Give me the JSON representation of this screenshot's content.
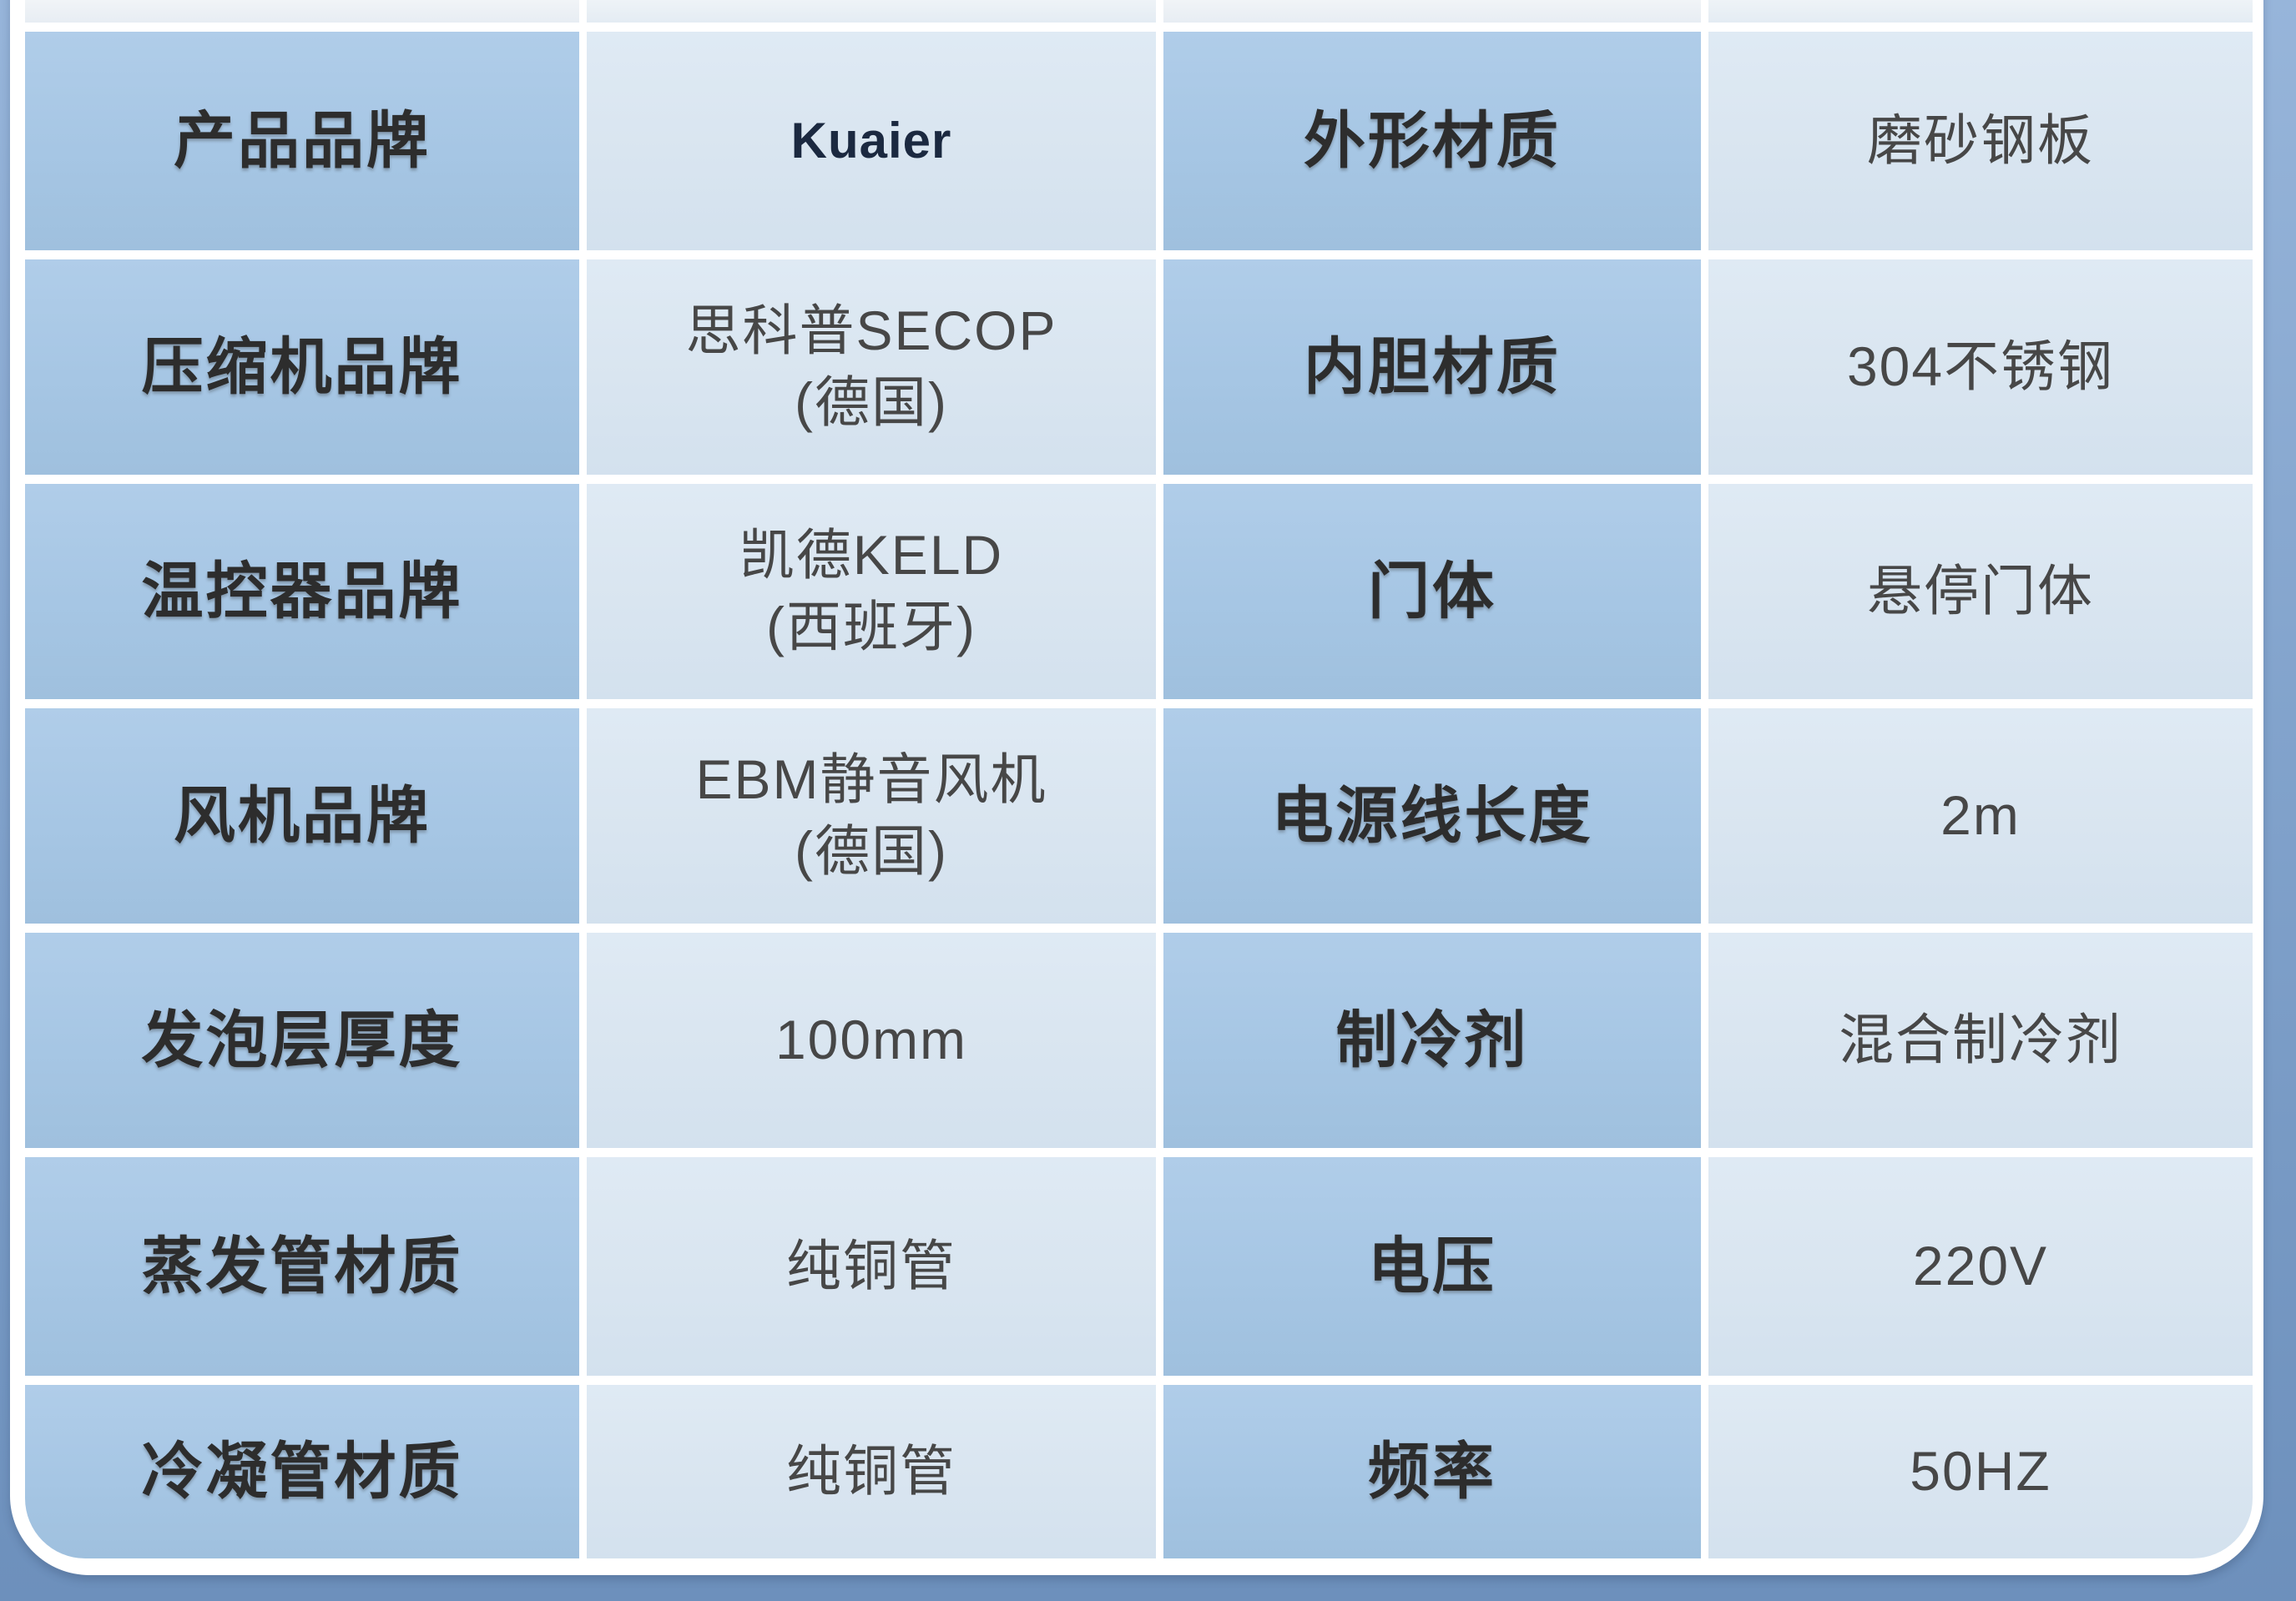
{
  "table": {
    "title_note": "product specification table",
    "pairs": [
      {
        "label": "产品品牌",
        "value": "Kuaier"
      },
      {
        "label": "外形材质",
        "value": "磨砂钢板"
      },
      {
        "label": "压缩机品牌",
        "value": "思科普SECOP\n(德国)"
      },
      {
        "label": "内胆材质",
        "value": "304不锈钢"
      },
      {
        "label": "温控器品牌",
        "value": "凯德KELD\n(西班牙)"
      },
      {
        "label": "门体",
        "value": "悬停门体"
      },
      {
        "label": "风机品牌",
        "value": "EBM静音风机\n(德国)"
      },
      {
        "label": "电源线长度",
        "value": "2m"
      },
      {
        "label": "发泡层厚度",
        "value": "100mm"
      },
      {
        "label": "制冷剂",
        "value": "混合制冷剂"
      },
      {
        "label": "蒸发管材质",
        "value": "纯铜管"
      },
      {
        "label": "电压",
        "value": "220V"
      },
      {
        "label": "冷凝管材质",
        "value": "纯铜管"
      },
      {
        "label": "频率",
        "value": "50HZ"
      }
    ]
  },
  "colors": {
    "page_background_top": "#97b5da",
    "page_background_bottom": "#6d90bc",
    "panel_border": "#ffffff",
    "label_cell": "#a6c6e4",
    "value_cell": "#d9e5f0",
    "label_text": "#2d2d2d",
    "value_text": "#474747",
    "brand_logo_text": "#1b2940"
  }
}
